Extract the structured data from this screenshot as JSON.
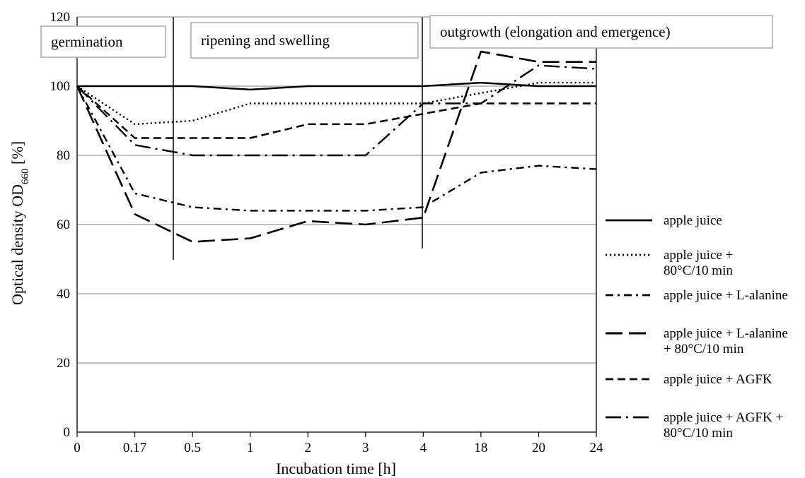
{
  "chart_data": {
    "type": "line",
    "xlabel": "Incubation time [h]",
    "ylabel_main": "Optical density OD",
    "ylabel_sub": "660",
    "ylabel_unit": " [%]",
    "categories": [
      "0",
      "0.17",
      "0.5",
      "1",
      "2",
      "3",
      "4",
      "18",
      "20",
      "24"
    ],
    "ylim": [
      0,
      120
    ],
    "yticks": [
      0,
      20,
      40,
      60,
      80,
      100,
      120
    ],
    "grid": true,
    "legend_position": "right",
    "phases": [
      {
        "label": "germination"
      },
      {
        "label": "ripening and swelling"
      },
      {
        "label": "outgrowth (elongation and emergence)"
      }
    ],
    "series": [
      {
        "name": "apple juice",
        "style": "solid",
        "values": [
          100,
          100,
          100,
          99,
          100,
          100,
          100,
          101,
          100,
          100
        ]
      },
      {
        "name": "apple juice + 80°C/10 min",
        "name_lines": [
          "apple juice +",
          "80°C/10 min"
        ],
        "style": "dotted",
        "values": [
          100,
          89,
          90,
          95,
          95,
          95,
          95,
          98,
          101,
          101
        ]
      },
      {
        "name": "apple juice + L-alanine",
        "name_lines": [
          "apple juice + L-alanine"
        ],
        "style": "dashdot",
        "values": [
          100,
          69,
          65,
          64,
          64,
          64,
          65,
          75,
          77,
          76
        ]
      },
      {
        "name": "apple juice + L-alanine + 80°C/10 min",
        "name_lines": [
          "apple juice + L-alanine",
          "+ 80°C/10 min"
        ],
        "style": "longdash",
        "values": [
          100,
          63,
          55,
          56,
          61,
          60,
          62,
          110,
          107,
          107
        ]
      },
      {
        "name": "apple juice + AGFK",
        "name_lines": [
          "apple juice + AGFK"
        ],
        "style": "dash",
        "values": [
          100,
          85,
          85,
          85,
          89,
          89,
          92,
          95,
          95,
          95
        ]
      },
      {
        "name": "apple juice + AGFK + 80°C/10 min",
        "name_lines": [
          "apple juice + AGFK +",
          "80°C/10 min"
        ],
        "style": "longdashdot",
        "values": [
          100,
          83,
          80,
          80,
          80,
          80,
          95,
          95,
          106,
          105
        ]
      }
    ]
  }
}
